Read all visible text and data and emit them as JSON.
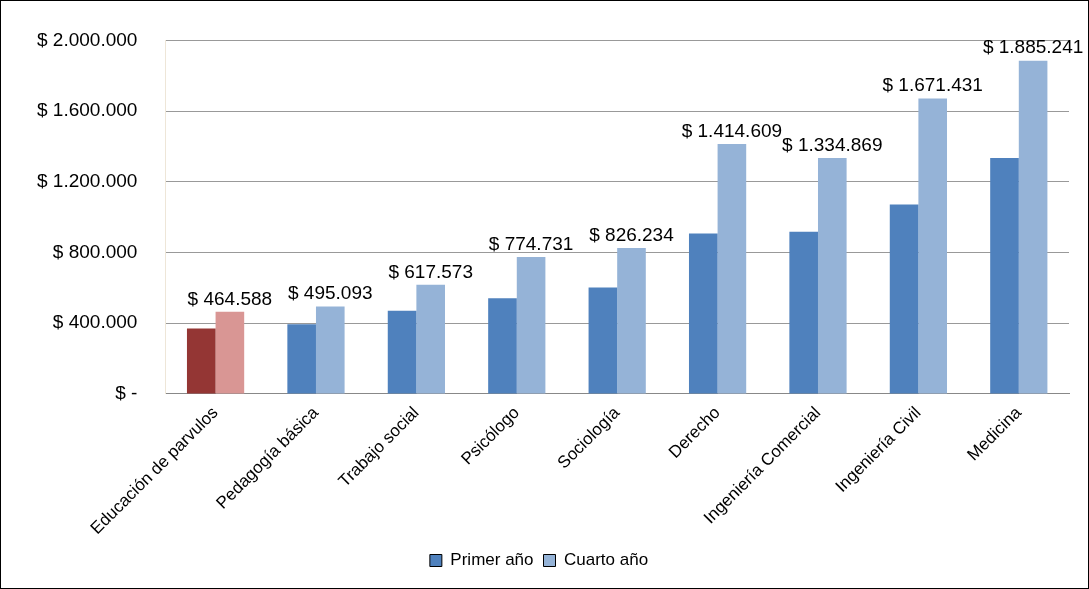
{
  "chart_data": {
    "type": "bar",
    "categories": [
      "Educación de parvulos",
      "Pedagogía básica",
      "Trabajo social",
      "Psicólogo",
      "Sociología",
      "Derecho",
      "Ingeniería Comercial",
      "Ingeniería Civil",
      "Medicina"
    ],
    "series": [
      {
        "name": "Primer año",
        "color": "#4f81bd",
        "colors": [
          "#943634",
          "#4f81bd",
          "#4f81bd",
          "#4f81bd",
          "#4f81bd",
          "#4f81bd",
          "#4f81bd",
          "#4f81bd",
          "#4f81bd"
        ],
        "values": [
          370000,
          395000,
          470000,
          542000,
          602000,
          907000,
          917000,
          1072000,
          1335000
        ]
      },
      {
        "name": "Cuarto año",
        "color": "#95b3d7",
        "colors": [
          "#d99694",
          "#95b3d7",
          "#95b3d7",
          "#95b3d7",
          "#95b3d7",
          "#95b3d7",
          "#95b3d7",
          "#95b3d7",
          "#95b3d7"
        ],
        "values": [
          464588,
          495093,
          617573,
          774731,
          826234,
          1414609,
          1334869,
          1671431,
          1885241
        ],
        "value_labels": [
          "$ 464.588",
          "$ 495.093",
          "$ 617.573",
          "$ 774.731",
          "$ 826.234",
          "$ 1.414.609",
          "$ 1.334.869",
          "$ 1.671.431",
          "$ 1.885.241"
        ]
      }
    ],
    "ylim": [
      0,
      2000000
    ],
    "yticks": [
      {
        "value": 0,
        "label": "$ -"
      },
      {
        "value": 400000,
        "label": "$ 400.000"
      },
      {
        "value": 800000,
        "label": "$ 800.000"
      },
      {
        "value": 1200000,
        "label": "$ 1.200.000"
      },
      {
        "value": 1600000,
        "label": "$ 1.600.000"
      },
      {
        "value": 2000000,
        "label": "$ 2.000.000"
      }
    ],
    "grid": "y",
    "legend": "bottom"
  }
}
